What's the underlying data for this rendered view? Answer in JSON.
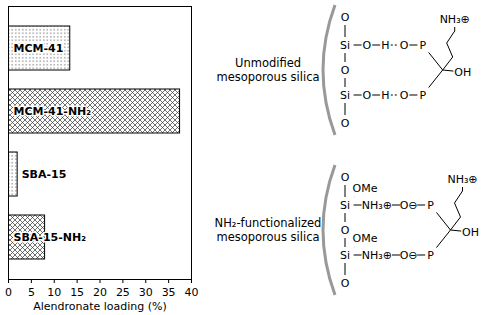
{
  "chart_data": {
    "type": "bar",
    "orientation": "horizontal",
    "categories": [
      "MCM-41",
      "MCM-41-NH₂",
      "SBA-15",
      "SBA-15-NH₂"
    ],
    "values": [
      13.5,
      37.5,
      2,
      8
    ],
    "colors": [
      "#555555",
      "#333333",
      "#555555",
      "#333333"
    ],
    "xlabel": "Alendronate loading (%)",
    "xlim": [
      0,
      40
    ],
    "xticks": [
      0,
      5,
      10,
      15,
      20,
      25,
      30,
      35,
      40
    ],
    "tick_labels": "x",
    "grid": false
  },
  "diagrams": [
    {
      "title": "Unmodified mesoporous silica",
      "wall": [
        "O",
        "O",
        "O"
      ],
      "links": [
        [
          "Si",
          "O",
          "H",
          "O"
        ],
        [
          "Si",
          "O",
          "H",
          "O"
        ]
      ],
      "drug": {
        "atom": "P",
        "hydroxyl": "OH",
        "amine": "NH₃⊕"
      }
    },
    {
      "title": "NH₂-functionalized mesoporous silica",
      "wall": [
        "O",
        "O",
        "O"
      ],
      "links": [
        [
          "Si",
          "NH₃⊕",
          "O⊖"
        ],
        [
          "Si",
          "NH₃⊕",
          "O⊖"
        ]
      ],
      "substituent": "OMe",
      "drug": {
        "atom": "P",
        "hydroxyl": "OH",
        "amine": "NH₃⊕"
      }
    }
  ]
}
